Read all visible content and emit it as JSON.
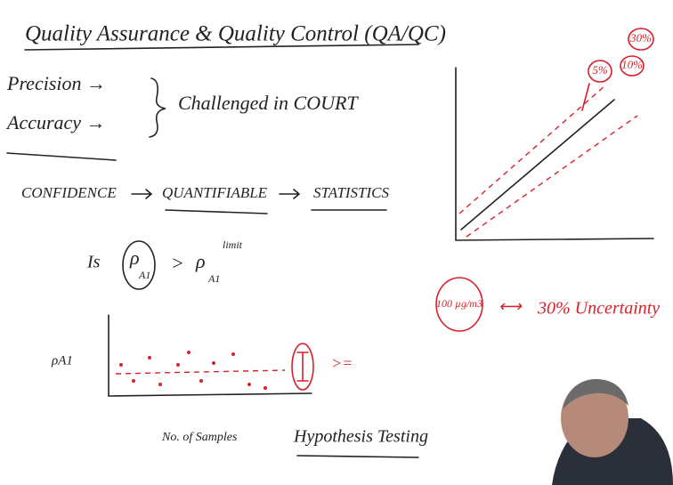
{
  "header": {
    "title": "Quality Assurance & Quality Control (QA/QC)"
  },
  "left": {
    "items": [
      "Precision →",
      "Accuracy →"
    ],
    "brace_note": "Challenged in COURT",
    "flow": [
      "CONFIDENCE",
      "QUANTIFIABLE",
      "STATISTICS"
    ],
    "question": {
      "prefix": "Is",
      "lhs": "ρ",
      "lhs_sub": "A1",
      "op": ">",
      "rhs": "ρ",
      "rhs_sub": "A1",
      "rhs_sup": "limit"
    }
  },
  "plot": {
    "y_label": "ρA1",
    "x_label": "No. of Samples",
    "comparison": ">=",
    "method": "Hypothesis Testing"
  },
  "right": {
    "circles": [
      "5%",
      "10%",
      "30%"
    ],
    "concentration": "100 µg/m3",
    "relation": "⟷",
    "uncertainty": "30% Uncertainty"
  }
}
